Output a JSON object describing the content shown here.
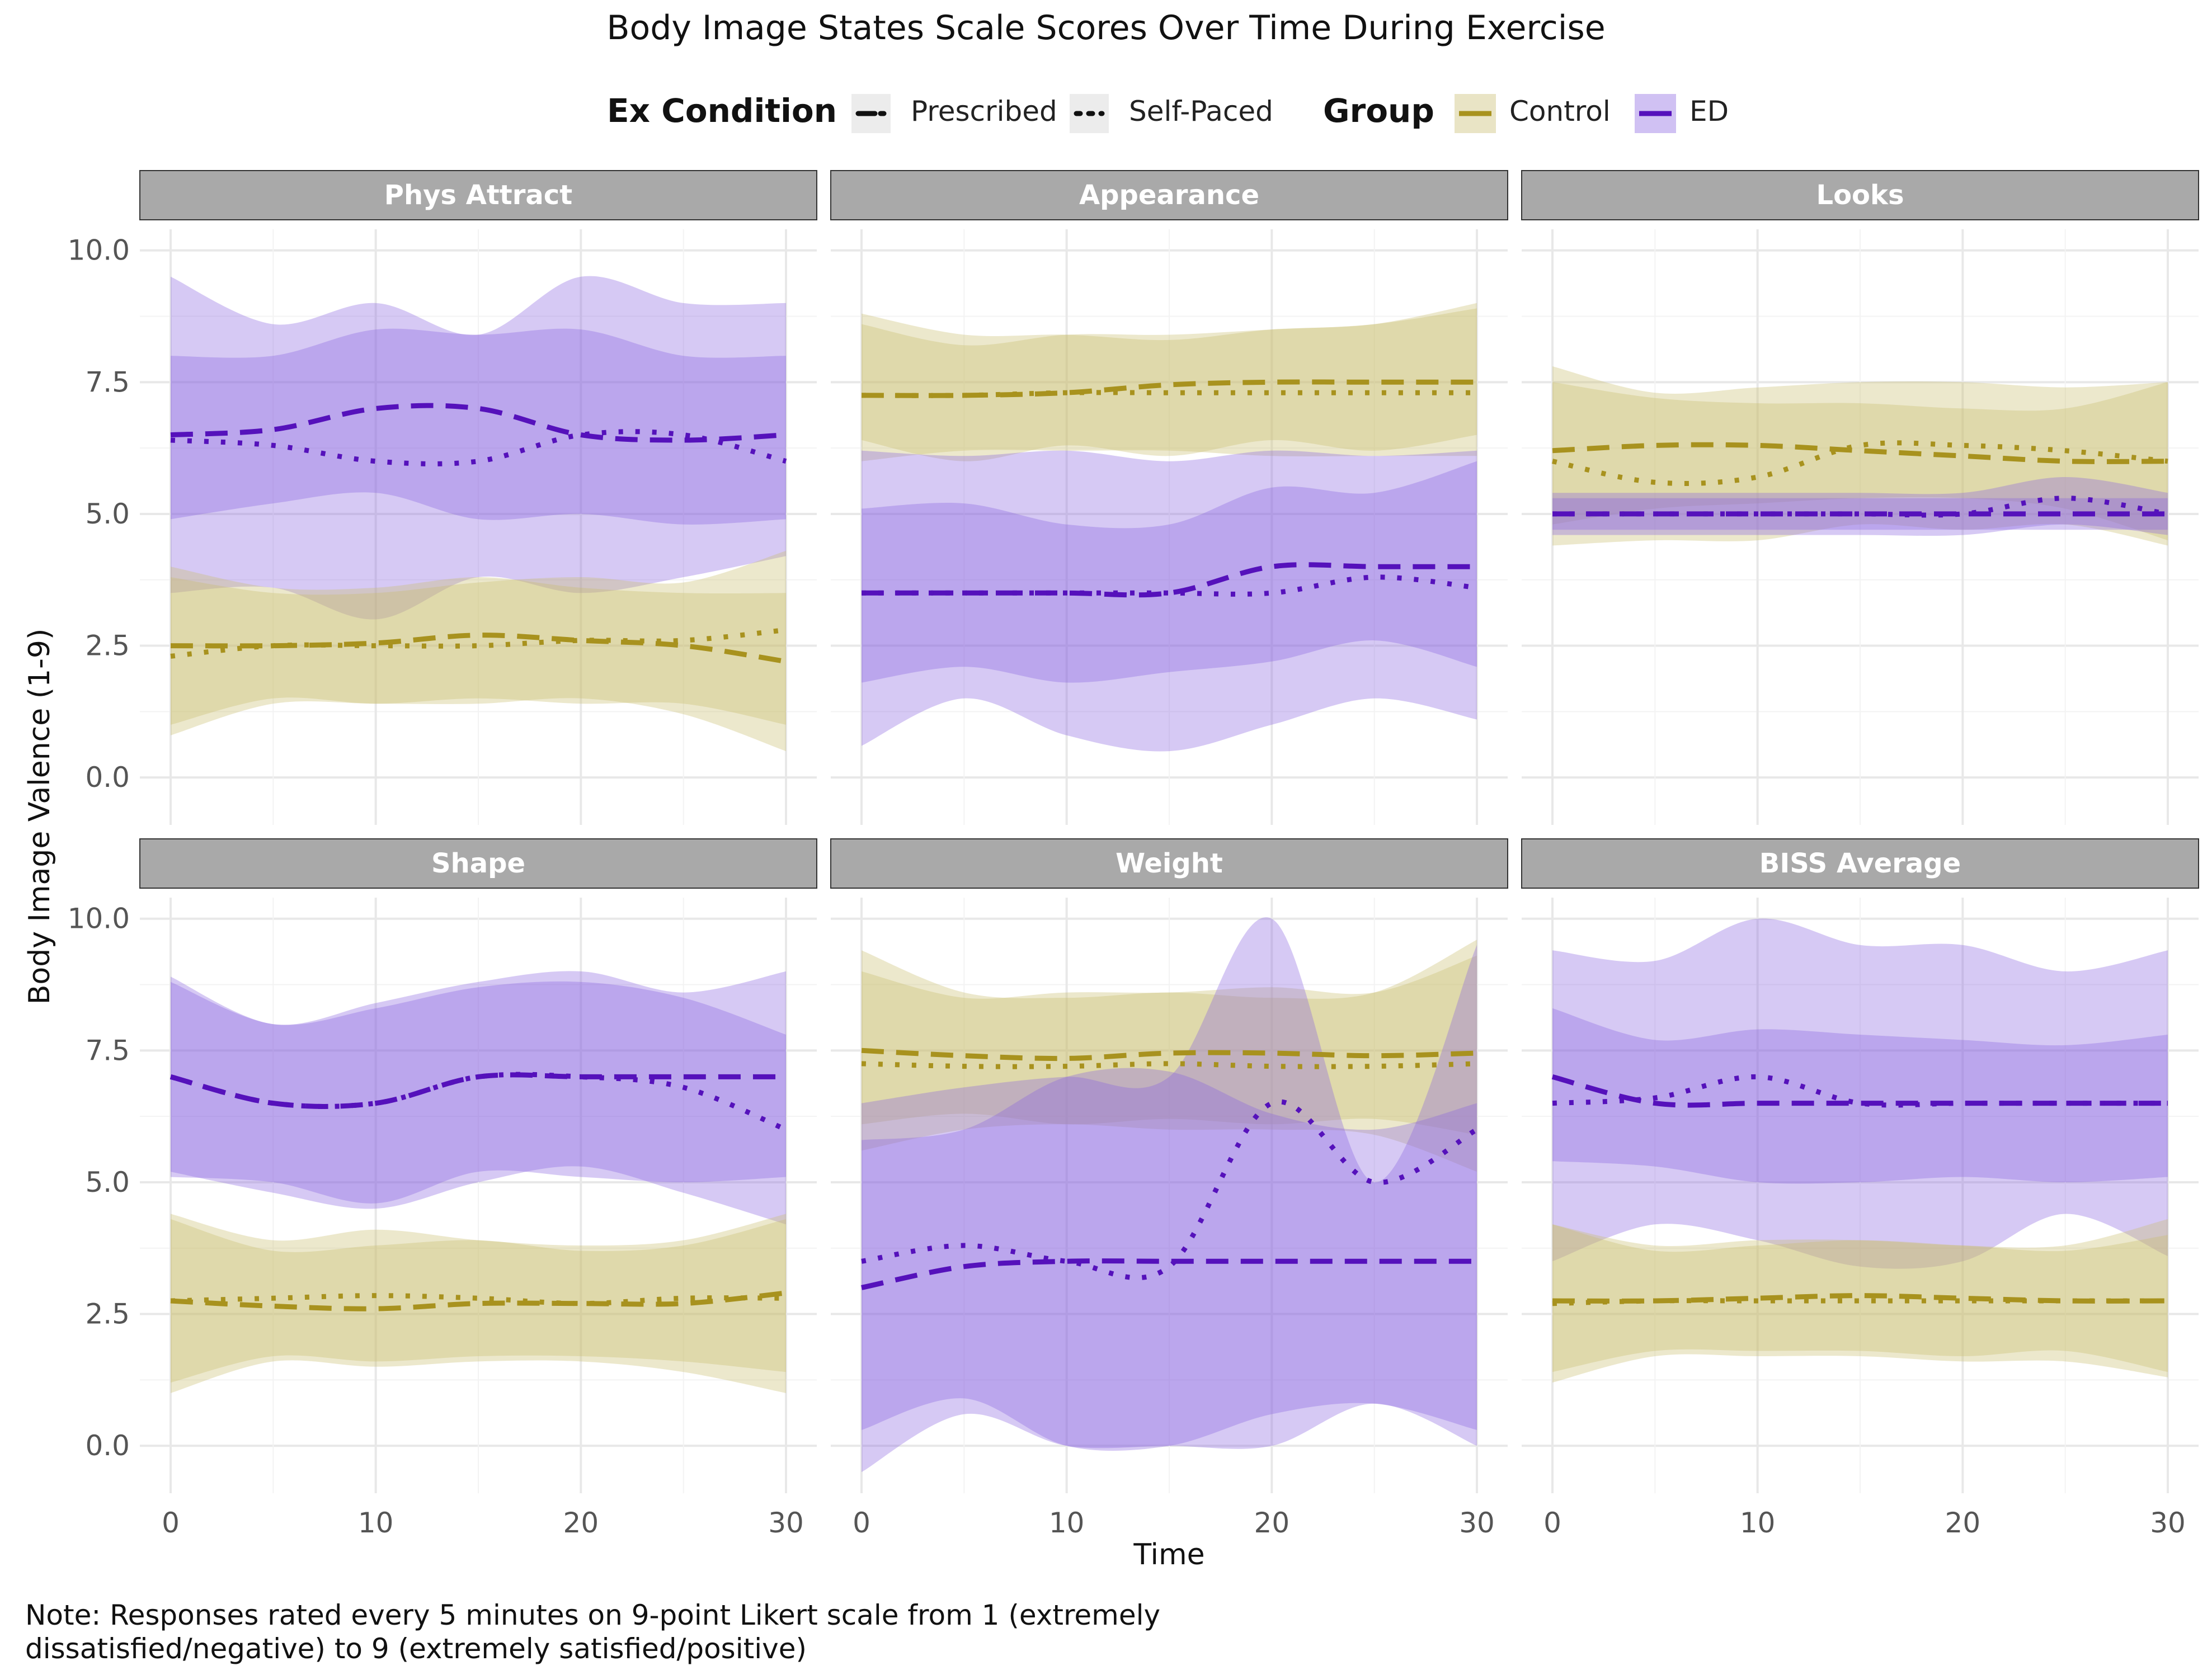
{
  "chart_data": {
    "type": "line",
    "title": "Body Image States Scale Scores Over Time During Exercise",
    "xlabel": "Time",
    "ylabel": "Body Image Valence (1-9)",
    "xlim": [
      0,
      30
    ],
    "ylim": [
      -0.9,
      10.4
    ],
    "x_ticks": [
      0,
      10,
      20,
      30
    ],
    "y_ticks": [
      0,
      2.5,
      5,
      7.5,
      10
    ],
    "y_tick_labels": [
      "0.0",
      "2.5",
      "5.0",
      "7.5",
      "10.0"
    ],
    "x_tick_labels": [
      "0",
      "10",
      "20",
      "30"
    ],
    "grid": true,
    "legend_placement": "top",
    "legend": {
      "condition_title": "Ex Condition",
      "conditions": [
        {
          "key": "prescribed",
          "label": "Prescribed",
          "linestyle": "dashed"
        },
        {
          "key": "selfpaced",
          "label": "Self-Paced",
          "linestyle": "dotted"
        }
      ],
      "group_title": "Group",
      "groups": [
        {
          "key": "control",
          "label": "Control",
          "color": "#A8921E",
          "fill": "#C9BC6E"
        },
        {
          "key": "ed",
          "label": "ED",
          "color": "#5511BB",
          "fill": "#8A63E0"
        }
      ]
    },
    "x": [
      0,
      5,
      10,
      15,
      20,
      25,
      30
    ],
    "panels": [
      {
        "name": "Phys Attract",
        "series": [
          {
            "group": "ed",
            "condition": "prescribed",
            "values": [
              6.5,
              6.6,
              7.0,
              7.0,
              6.5,
              6.4,
              6.5
            ],
            "lower": [
              4.9,
              5.2,
              5.4,
              4.9,
              5.0,
              4.8,
              4.9
            ],
            "upper": [
              8.0,
              8.0,
              8.5,
              8.4,
              8.5,
              8.0,
              8.0
            ]
          },
          {
            "group": "ed",
            "condition": "selfpaced",
            "values": [
              6.4,
              6.3,
              6.0,
              6.0,
              6.5,
              6.5,
              6.0
            ],
            "lower": [
              3.5,
              3.6,
              3.0,
              3.8,
              3.5,
              3.8,
              4.2
            ],
            "upper": [
              9.5,
              8.6,
              9.0,
              8.4,
              9.5,
              9.0,
              9.0
            ]
          },
          {
            "group": "control",
            "condition": "prescribed",
            "values": [
              2.5,
              2.5,
              2.55,
              2.7,
              2.6,
              2.5,
              2.2
            ],
            "lower": [
              1.0,
              1.5,
              1.4,
              1.5,
              1.4,
              1.4,
              1.0
            ],
            "upper": [
              4.0,
              3.6,
              3.6,
              3.8,
              3.6,
              3.5,
              3.5
            ]
          },
          {
            "group": "control",
            "condition": "selfpaced",
            "values": [
              2.3,
              2.5,
              2.5,
              2.5,
              2.6,
              2.6,
              2.8
            ],
            "lower": [
              0.8,
              1.4,
              1.4,
              1.4,
              1.5,
              1.2,
              0.5
            ],
            "upper": [
              3.8,
              3.5,
              3.5,
              3.7,
              3.8,
              3.7,
              4.3
            ]
          }
        ]
      },
      {
        "name": "Appearance",
        "series": [
          {
            "group": "control",
            "condition": "prescribed",
            "values": [
              7.25,
              7.25,
              7.3,
              7.45,
              7.5,
              7.5,
              7.5
            ],
            "lower": [
              6.0,
              6.2,
              6.2,
              6.2,
              6.1,
              6.1,
              6.1
            ],
            "upper": [
              8.6,
              8.2,
              8.4,
              8.4,
              8.5,
              8.6,
              8.9
            ]
          },
          {
            "group": "control",
            "condition": "selfpaced",
            "values": [
              7.25,
              7.25,
              7.3,
              7.3,
              7.3,
              7.3,
              7.3
            ],
            "lower": [
              6.4,
              6.0,
              6.3,
              6.1,
              6.4,
              6.2,
              6.5
            ],
            "upper": [
              8.8,
              8.4,
              8.4,
              8.3,
              8.5,
              8.6,
              9.0
            ]
          },
          {
            "group": "ed",
            "condition": "prescribed",
            "values": [
              3.5,
              3.5,
              3.5,
              3.5,
              4.0,
              4.0,
              4.0
            ],
            "lower": [
              1.8,
              2.1,
              1.8,
              2.0,
              2.2,
              2.6,
              2.1
            ],
            "upper": [
              5.1,
              5.2,
              4.8,
              4.8,
              5.5,
              5.4,
              6.0
            ]
          },
          {
            "group": "ed",
            "condition": "selfpaced",
            "values": [
              3.5,
              3.5,
              3.5,
              3.5,
              3.5,
              3.8,
              3.6
            ],
            "lower": [
              0.6,
              1.5,
              0.8,
              0.5,
              1.0,
              1.5,
              1.1
            ],
            "upper": [
              6.2,
              6.1,
              6.2,
              6.0,
              6.2,
              6.1,
              6.2
            ]
          }
        ]
      },
      {
        "name": "Looks",
        "series": [
          {
            "group": "control",
            "condition": "prescribed",
            "values": [
              6.2,
              6.3,
              6.3,
              6.2,
              6.1,
              6.0,
              6.0
            ],
            "lower": [
              4.8,
              5.1,
              5.2,
              5.3,
              5.3,
              5.1,
              4.5
            ],
            "upper": [
              7.5,
              7.2,
              7.1,
              7.1,
              7.0,
              7.0,
              7.5
            ]
          },
          {
            "group": "control",
            "condition": "selfpaced",
            "values": [
              6.0,
              5.6,
              5.7,
              6.3,
              6.3,
              6.2,
              6.0
            ],
            "lower": [
              4.4,
              4.5,
              4.5,
              4.8,
              4.7,
              4.8,
              4.4
            ],
            "upper": [
              7.8,
              7.3,
              7.4,
              7.5,
              7.5,
              7.4,
              7.5
            ]
          },
          {
            "group": "ed",
            "condition": "prescribed",
            "values": [
              5.0,
              5.0,
              5.0,
              5.0,
              5.0,
              5.0,
              5.0
            ],
            "lower": [
              4.7,
              4.7,
              4.7,
              4.7,
              4.7,
              4.7,
              4.7
            ],
            "upper": [
              5.3,
              5.3,
              5.3,
              5.3,
              5.3,
              5.3,
              5.3
            ]
          },
          {
            "group": "ed",
            "condition": "selfpaced",
            "values": [
              5.0,
              5.0,
              5.0,
              5.0,
              5.0,
              5.3,
              5.0
            ],
            "lower": [
              4.6,
              4.6,
              4.6,
              4.6,
              4.6,
              4.8,
              4.6
            ],
            "upper": [
              5.4,
              5.4,
              5.4,
              5.4,
              5.4,
              5.7,
              5.4
            ]
          }
        ]
      },
      {
        "name": "Shape",
        "series": [
          {
            "group": "ed",
            "condition": "prescribed",
            "values": [
              7.0,
              6.5,
              6.5,
              7.0,
              7.0,
              7.0,
              7.0
            ],
            "lower": [
              5.1,
              5.0,
              4.6,
              5.2,
              5.1,
              5.0,
              5.1
            ],
            "upper": [
              8.8,
              8.0,
              8.3,
              8.7,
              8.8,
              8.5,
              7.8
            ]
          },
          {
            "group": "ed",
            "condition": "selfpaced",
            "values": [
              7.0,
              6.5,
              6.5,
              7.0,
              7.0,
              6.8,
              6.0
            ],
            "lower": [
              5.2,
              4.8,
              4.5,
              5.0,
              5.3,
              4.8,
              4.2
            ],
            "upper": [
              8.9,
              8.0,
              8.4,
              8.8,
              9.0,
              8.6,
              9.0
            ]
          },
          {
            "group": "control",
            "condition": "prescribed",
            "values": [
              2.75,
              2.65,
              2.6,
              2.7,
              2.7,
              2.7,
              2.9
            ],
            "lower": [
              1.2,
              1.7,
              1.6,
              1.7,
              1.7,
              1.6,
              1.4
            ],
            "upper": [
              4.3,
              3.7,
              3.8,
              3.9,
              3.7,
              3.8,
              4.3
            ]
          },
          {
            "group": "control",
            "condition": "selfpaced",
            "values": [
              2.75,
              2.8,
              2.85,
              2.8,
              2.7,
              2.8,
              2.8
            ],
            "lower": [
              1.0,
              1.6,
              1.5,
              1.6,
              1.6,
              1.4,
              1.0
            ],
            "upper": [
              4.4,
              3.9,
              4.1,
              3.9,
              3.8,
              3.9,
              4.4
            ]
          }
        ]
      },
      {
        "name": "Weight",
        "series": [
          {
            "group": "control",
            "condition": "prescribed",
            "values": [
              7.5,
              7.4,
              7.35,
              7.45,
              7.45,
              7.4,
              7.45
            ],
            "lower": [
              6.1,
              6.3,
              6.1,
              6.2,
              6.1,
              6.2,
              5.9
            ],
            "upper": [
              9.0,
              8.5,
              8.6,
              8.6,
              8.7,
              8.6,
              9.3
            ]
          },
          {
            "group": "control",
            "condition": "selfpaced",
            "values": [
              7.25,
              7.2,
              7.2,
              7.25,
              7.2,
              7.2,
              7.25
            ],
            "lower": [
              5.6,
              6.0,
              6.1,
              6.0,
              6.0,
              5.9,
              5.2
            ],
            "upper": [
              9.4,
              8.6,
              8.5,
              8.6,
              8.5,
              8.6,
              9.6
            ]
          },
          {
            "group": "ed",
            "condition": "prescribed",
            "values": [
              3.0,
              3.4,
              3.5,
              3.5,
              3.5,
              3.5,
              3.5
            ],
            "lower": [
              0.3,
              0.9,
              0.0,
              0.0,
              0.6,
              0.8,
              0.3
            ],
            "upper": [
              5.8,
              6.0,
              7.0,
              7.1,
              6.3,
              6.0,
              6.5
            ]
          },
          {
            "group": "ed",
            "condition": "selfpaced",
            "values": [
              3.5,
              3.8,
              3.5,
              3.4,
              6.5,
              5.0,
              6.0
            ],
            "lower": [
              -0.5,
              0.6,
              0.0,
              0.0,
              0.0,
              0.8,
              0.0
            ],
            "upper": [
              6.5,
              6.8,
              7.0,
              7.0,
              10.0,
              5.0,
              9.5
            ]
          }
        ]
      },
      {
        "name": "BISS Average",
        "series": [
          {
            "group": "ed",
            "condition": "prescribed",
            "values": [
              7.0,
              6.5,
              6.5,
              6.5,
              6.5,
              6.5,
              6.5
            ],
            "lower": [
              5.4,
              5.3,
              5.0,
              5.0,
              5.1,
              5.0,
              5.1
            ],
            "upper": [
              8.3,
              7.7,
              7.9,
              7.8,
              7.7,
              7.6,
              7.8
            ]
          },
          {
            "group": "ed",
            "condition": "selfpaced",
            "values": [
              6.5,
              6.6,
              7.0,
              6.5,
              6.5,
              6.5,
              6.5
            ],
            "lower": [
              3.5,
              4.2,
              3.9,
              3.4,
              3.5,
              4.4,
              3.6
            ],
            "upper": [
              9.4,
              9.2,
              10.0,
              9.5,
              9.5,
              9.0,
              9.4
            ]
          },
          {
            "group": "control",
            "condition": "prescribed",
            "values": [
              2.75,
              2.75,
              2.8,
              2.85,
              2.8,
              2.75,
              2.75
            ],
            "lower": [
              1.4,
              1.8,
              1.8,
              1.8,
              1.7,
              1.8,
              1.4
            ],
            "upper": [
              4.2,
              3.7,
              3.8,
              3.9,
              3.8,
              3.7,
              4.0
            ]
          },
          {
            "group": "control",
            "condition": "selfpaced",
            "values": [
              2.7,
              2.75,
              2.75,
              2.75,
              2.75,
              2.75,
              2.75
            ],
            "lower": [
              1.2,
              1.7,
              1.7,
              1.7,
              1.6,
              1.6,
              1.3
            ],
            "upper": [
              4.2,
              3.8,
              3.9,
              3.9,
              3.8,
              3.8,
              4.3
            ]
          }
        ]
      }
    ],
    "note_lines": [
      "Note: Responses rated every 5 minutes on 9-point Likert scale from 1 (extremely",
      "dissatisfied/negative) to 9 (extremely satisfied/positive)"
    ]
  }
}
